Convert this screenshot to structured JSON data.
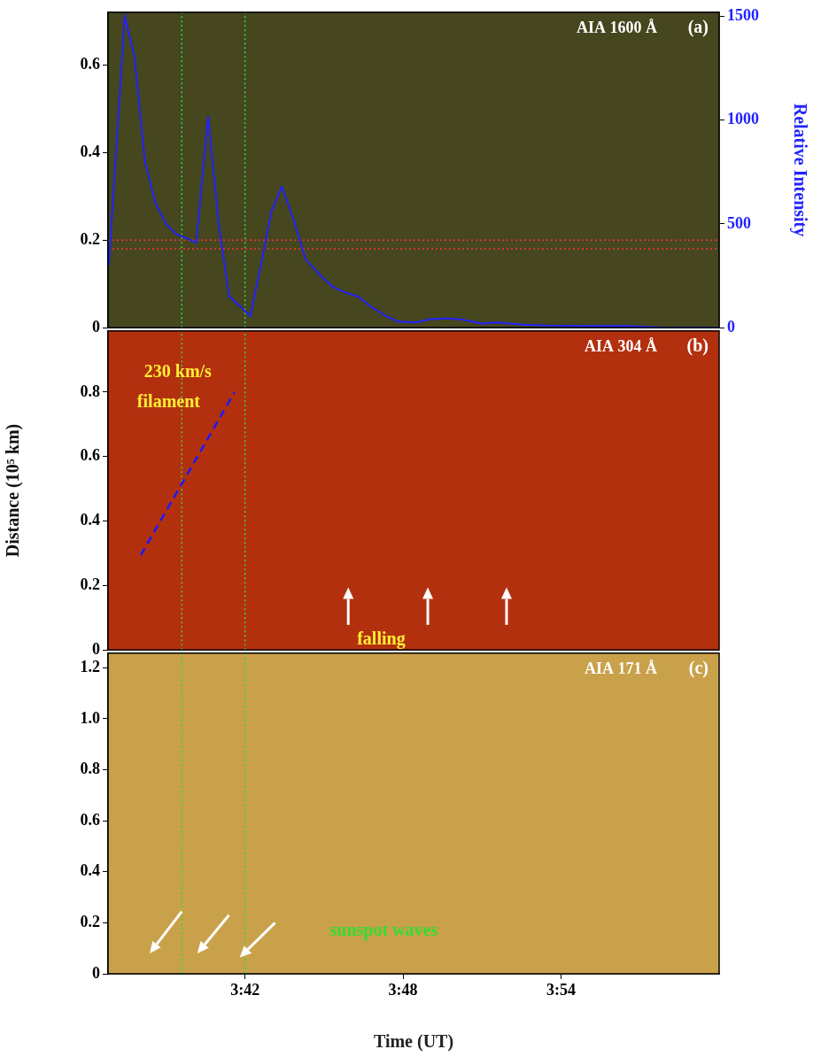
{
  "chart_data": [
    {
      "type": "line",
      "title": "AIA 1600 Å",
      "panel_label": "(a)",
      "xlim": [
        36.8,
        60
      ],
      "ylim": [
        0,
        0.72
      ],
      "yticks": [
        0,
        0.2,
        0.4,
        0.6
      ],
      "y2lim": [
        0,
        1520
      ],
      "y2ticks": [
        0,
        500,
        1000,
        1500
      ],
      "y2_label": "Relative Intensity",
      "tick_labels": "y",
      "series": [
        {
          "axis": "y2",
          "color": "#2222ff",
          "x": [
            36.83,
            37.43,
            37.8,
            38.2,
            38.6,
            39.0,
            39.4,
            39.8,
            40.15,
            40.6,
            41.0,
            41.4,
            41.85,
            42.2,
            42.6,
            43.0,
            43.4,
            43.9,
            44.3,
            44.8,
            45.3,
            45.8,
            46.3,
            46.8,
            47.3,
            47.8,
            48.5,
            49.0,
            49.6,
            50.2,
            51.0,
            51.6,
            52.5,
            53.5,
            55.0,
            56.5,
            58.0,
            60.0
          ],
          "values": [
            300,
            1500,
            1310,
            800,
            600,
            500,
            450,
            430,
            410,
            1020,
            500,
            150,
            100,
            55,
            300,
            560,
            680,
            500,
            330,
            260,
            200,
            170,
            150,
            100,
            60,
            30,
            25,
            40,
            45,
            40,
            20,
            25,
            15,
            10,
            8,
            8,
            0,
            0
          ]
        }
      ],
      "hlines": [
        0.18,
        0.2
      ],
      "vlines": [
        39.6,
        42.0
      ]
    },
    {
      "type": "line",
      "title": "AIA 304 Å",
      "panel_label": "(b)",
      "ylabel": "Distance (10⁵ km)",
      "xlim": [
        36.8,
        60
      ],
      "ylim": [
        0,
        0.99
      ],
      "yticks": [
        0,
        0.2,
        0.4,
        0.6,
        0.8
      ],
      "tick_labels": "y",
      "series": [
        {
          "color": "#1a1aff",
          "line_style": "dashed",
          "x": [
            38.04,
            41.6
          ],
          "values": [
            0.294,
            0.8
          ]
        }
      ],
      "annotations": [
        {
          "text": "230 km/s",
          "x": 39.45,
          "y": 0.86,
          "color": "#ffee33"
        },
        {
          "text": "filament",
          "x": 39.1,
          "y": 0.767,
          "color": "#ffee33"
        },
        {
          "text": "falling",
          "x": 47.17,
          "y": 0.03,
          "color": "#ffee33"
        }
      ],
      "arrows": [
        {
          "from": [
            45.92,
            0.078
          ],
          "to": [
            45.92,
            0.194
          ]
        },
        {
          "from": [
            48.94,
            0.078
          ],
          "to": [
            48.94,
            0.194
          ]
        },
        {
          "from": [
            51.93,
            0.078
          ],
          "to": [
            51.93,
            0.194
          ]
        }
      ],
      "vlines": [
        39.6,
        42.0
      ]
    },
    {
      "type": "line",
      "title": "AIA 171 Å",
      "panel_label": "(c)",
      "xlabel": "Time (UT)",
      "xlim": [
        36.8,
        60
      ],
      "xticks": [
        {
          "value": 42,
          "label": "3:42"
        },
        {
          "value": 48,
          "label": "3:48"
        },
        {
          "value": 54,
          "label": "3:54"
        }
      ],
      "ylim": [
        0,
        1.257
      ],
      "yticks": [
        0,
        0.2,
        0.4,
        0.6,
        0.8,
        {
          "value": 1,
          "label": "1.0"
        },
        1.2
      ],
      "series": [],
      "annotations": [
        {
          "text": "sunspot waves",
          "x": 47.27,
          "y": 0.167,
          "color": "#33dd33"
        }
      ],
      "arrows": [
        {
          "from": [
            39.6,
            0.244
          ],
          "to": [
            38.38,
            0.08
          ]
        },
        {
          "from": [
            41.39,
            0.23
          ],
          "to": [
            40.19,
            0.08
          ]
        },
        {
          "from": [
            43.14,
            0.2
          ],
          "to": [
            41.8,
            0.064
          ]
        }
      ],
      "vlines": [
        39.6,
        42.0
      ]
    }
  ]
}
